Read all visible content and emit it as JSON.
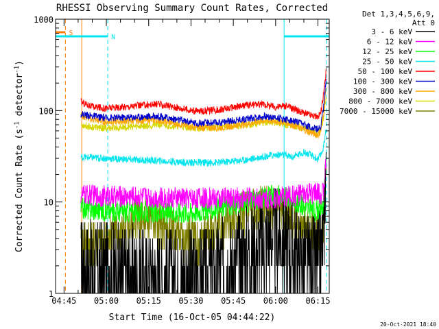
{
  "chart_data": {
    "type": "line",
    "title": "RHESSI Observing Summary Count Rates, Corrected",
    "xlabel": "Start Time (16-Oct-05 04:44:22)",
    "ylabel": "Corrected Count Rate (s",
    "ylabel_sup": "-1",
    "ylabel_tail": " detector",
    "ylabel_tail_sup": "-1",
    "ylabel_close": ")",
    "y_scale": "log",
    "ylim": [
      1,
      1000
    ],
    "y_ticks": [
      {
        "value": 1,
        "label": "1"
      },
      {
        "value": 10,
        "label": "10"
      },
      {
        "value": 100,
        "label": "100"
      },
      {
        "value": 1000,
        "label": "1000"
      }
    ],
    "xlim_minutes": [
      282,
      379
    ],
    "x_ticks": [
      {
        "minutes": 285,
        "label": "04:45"
      },
      {
        "minutes": 300,
        "label": "05:00"
      },
      {
        "minutes": 315,
        "label": "05:15"
      },
      {
        "minutes": 330,
        "label": "05:30"
      },
      {
        "minutes": 345,
        "label": "05:45"
      },
      {
        "minutes": 360,
        "label": "06:00"
      },
      {
        "minutes": 375,
        "label": "06:15"
      }
    ],
    "legend_header": [
      "Det 1,3,4,5,6,9,",
      "Att 0"
    ],
    "legend_position": "right",
    "footer_date": "20-Oct-2021 18:40",
    "flags": [
      {
        "label": "S",
        "color": "#ff7f00",
        "start": 282,
        "end": 285.5,
        "level": 720
      },
      {
        "label": "N",
        "color": "#00e5ee",
        "start": 282,
        "end": 300.5,
        "level": 650
      },
      {
        "label": "",
        "color": "#00e5ee",
        "start": 363,
        "end": 379,
        "level": 650
      }
    ],
    "vlines": [
      {
        "minutes": 282,
        "color": "#00e5ee",
        "style": "solid"
      },
      {
        "minutes": 285.5,
        "color": "#ff7f00",
        "style": "dashed"
      },
      {
        "minutes": 291.3,
        "color": "#ff7f00",
        "style": "solid"
      },
      {
        "minutes": 300.5,
        "color": "#00e5ee",
        "style": "dashed"
      },
      {
        "minutes": 363,
        "color": "#00e5ee",
        "style": "solid"
      },
      {
        "minutes": 378,
        "color": "#00e5ee",
        "style": "dashed"
      }
    ],
    "series": [
      {
        "name": "3 - 6 keV",
        "color": "#000000",
        "x": [
          291,
          300,
          310,
          320,
          330,
          337,
          345,
          352,
          357,
          360,
          363,
          368,
          372,
          375,
          377,
          378
        ],
        "y": [
          2,
          1.8,
          1.6,
          1.5,
          1.5,
          1.6,
          2.2,
          3,
          4,
          4.2,
          3.8,
          2.6,
          2,
          2.2,
          4,
          45
        ]
      },
      {
        "name": "6 - 12 keV",
        "color": "#ff00ff",
        "x": [
          291,
          300,
          310,
          320,
          330,
          340,
          350,
          360,
          365,
          370,
          374,
          376,
          377,
          378
        ],
        "y": [
          12,
          11.5,
          11.5,
          11,
          11,
          11,
          11,
          11,
          11.5,
          12,
          12.5,
          12,
          13,
          30
        ]
      },
      {
        "name": "12 - 25 keV",
        "color": "#00ff00",
        "x": [
          291,
          300,
          310,
          320,
          330,
          340,
          350,
          355,
          360,
          365,
          370,
          374,
          376,
          377,
          378
        ],
        "y": [
          8.5,
          8,
          7.8,
          7.6,
          7.8,
          8.5,
          10,
          11,
          12,
          11,
          9,
          8,
          8.5,
          10,
          40
        ]
      },
      {
        "name": "25 - 50 keV",
        "color": "#00e5ee",
        "x": [
          291,
          300,
          310,
          320,
          330,
          340,
          350,
          357,
          362,
          366,
          370,
          373,
          375,
          376,
          377,
          378
        ],
        "y": [
          31,
          30,
          29,
          28,
          27,
          27,
          29,
          32,
          33,
          31,
          35,
          32,
          29,
          33,
          40,
          70
        ]
      },
      {
        "name": "50 - 100 keV",
        "color": "#ff0000",
        "x": [
          291,
          295,
          300,
          310,
          318,
          325,
          332,
          340,
          350,
          355,
          360,
          364,
          368,
          372,
          375,
          376,
          377,
          378
        ],
        "y": [
          125,
          110,
          106,
          112,
          118,
          108,
          98,
          102,
          115,
          118,
          110,
          112,
          100,
          90,
          85,
          95,
          150,
          290
        ]
      },
      {
        "name": "100 - 300 keV",
        "color": "#0000cc",
        "x": [
          291,
          295,
          300,
          310,
          318,
          325,
          332,
          340,
          350,
          356,
          360,
          364,
          368,
          372,
          375,
          376,
          377,
          378
        ],
        "y": [
          92,
          87,
          83,
          85,
          87,
          80,
          73,
          74,
          82,
          86,
          84,
          80,
          74,
          67,
          62,
          67,
          110,
          230
        ]
      },
      {
        "name": "300 - 800 keV",
        "color": "#ffa500",
        "x": [
          291,
          295,
          300,
          310,
          318,
          325,
          332,
          340,
          350,
          356,
          360,
          364,
          368,
          372,
          375,
          376,
          377,
          378
        ],
        "y": [
          88,
          80,
          75,
          78,
          79,
          72,
          65,
          65,
          72,
          78,
          77,
          74,
          66,
          58,
          54,
          60,
          95,
          190
        ]
      },
      {
        "name": "800 - 7000 keV",
        "color": "#d7d700",
        "x": [
          291,
          295,
          300,
          310,
          318,
          325,
          332,
          340,
          350,
          356,
          360,
          364,
          368,
          372,
          375,
          376,
          377,
          378
        ],
        "y": [
          70,
          66,
          64,
          67,
          70,
          68,
          64,
          65,
          70,
          74,
          74,
          70,
          66,
          62,
          57,
          61,
          85,
          150
        ]
      },
      {
        "name": "7000 - 15000 keV",
        "color": "#808000",
        "x": [
          291,
          296,
          300,
          304,
          308,
          312,
          316,
          320,
          325,
          330,
          335,
          340,
          345,
          350,
          356,
          360,
          364,
          368,
          372,
          376,
          377,
          378
        ],
        "y": [
          3.5,
          3.5,
          4,
          4.5,
          5.5,
          6.5,
          6.5,
          5.5,
          4.5,
          4,
          4,
          5,
          6.5,
          7.5,
          9,
          8.5,
          7.5,
          6,
          4.5,
          4,
          5,
          40
        ]
      }
    ]
  }
}
